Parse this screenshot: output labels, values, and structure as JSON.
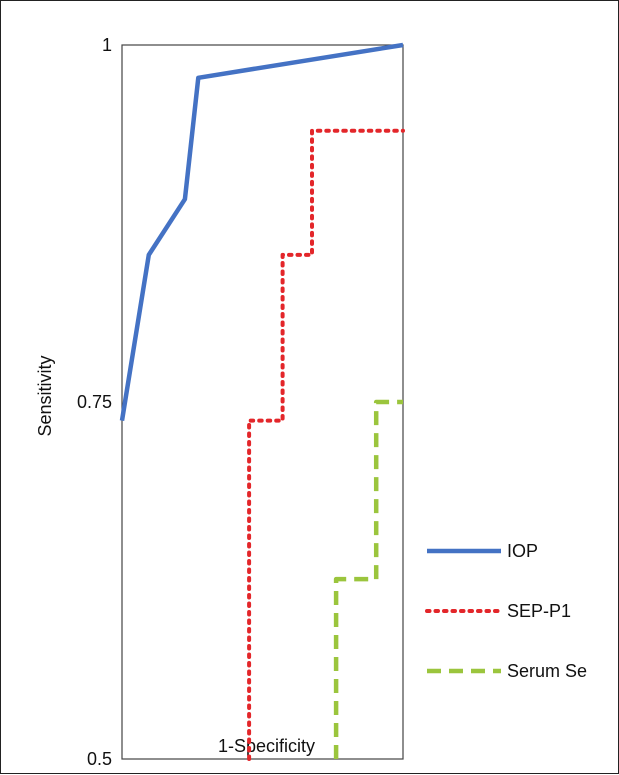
{
  "chart_data": {
    "type": "line",
    "title": "",
    "xlabel": "1-Specificity",
    "ylabel": "Sensitivity",
    "xlim": [
      0,
      0.21
    ],
    "ylim": [
      0.5,
      1
    ],
    "x_ticks": [
      "0",
      "0.1",
      "0.2"
    ],
    "y_ticks": [
      "0.5",
      "0.75",
      "1"
    ],
    "x_tick_values": [
      0,
      0.1,
      0.2
    ],
    "y_tick_values": [
      0.5,
      0.75,
      1
    ],
    "grid": false,
    "legend_position": "right",
    "series": [
      {
        "name": "IOP",
        "color": "#4472C4",
        "style": "solid",
        "x": [
          0,
          0.02,
          0.047,
          0.057,
          0.21
        ],
        "y": [
          0.737,
          0.853,
          0.892,
          0.977,
          1.0
        ]
      },
      {
        "name": "SEP-P1",
        "color": "#E3262A",
        "style": "dotted",
        "x": [
          0.095,
          0.095,
          0.12,
          0.12,
          0.142,
          0.142,
          0.21
        ],
        "y": [
          0.5,
          0.737,
          0.737,
          0.853,
          0.853,
          0.94,
          0.94
        ]
      },
      {
        "name": "Serum Se",
        "color": "#9BC53D",
        "style": "dashed",
        "x": [
          0.16,
          0.16,
          0.19,
          0.19,
          0.21
        ],
        "y": [
          0.5,
          0.626,
          0.626,
          0.75,
          0.75
        ]
      }
    ]
  }
}
